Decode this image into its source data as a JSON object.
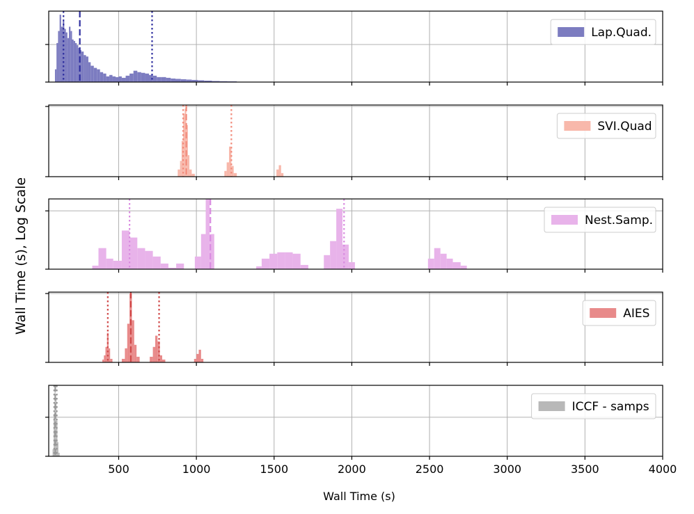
{
  "chart_data": {
    "type": "histogram",
    "xlabel": "Wall Time (s)",
    "ylabel": "Wall Time (s), Log Scale",
    "xlim": [
      50,
      4000
    ],
    "x_ticks": [
      500,
      1000,
      1500,
      2000,
      2500,
      3000,
      3500,
      4000
    ],
    "x_tick_labels": [
      "500",
      "1000",
      "1500",
      "2000",
      "2500",
      "3000",
      "3500",
      "4000"
    ],
    "y_scale": "log",
    "grid": true,
    "panels": [
      {
        "name": "Lap.Quad.",
        "color": "#7c7cc0",
        "line_color": "#3030a0",
        "ylim": [
          0,
          1.0
        ],
        "y_ticks": [
          0.53
        ],
        "bins": [
          {
            "x0": 90,
            "x1": 100,
            "h": 0.18
          },
          {
            "x0": 100,
            "x1": 110,
            "h": 0.55
          },
          {
            "x0": 110,
            "x1": 120,
            "h": 0.72
          },
          {
            "x0": 120,
            "x1": 130,
            "h": 0.95
          },
          {
            "x0": 130,
            "x1": 140,
            "h": 0.78
          },
          {
            "x0": 140,
            "x1": 150,
            "h": 0.86
          },
          {
            "x0": 150,
            "x1": 160,
            "h": 0.75
          },
          {
            "x0": 160,
            "x1": 170,
            "h": 0.7
          },
          {
            "x0": 170,
            "x1": 180,
            "h": 0.62
          },
          {
            "x0": 180,
            "x1": 190,
            "h": 0.78
          },
          {
            "x0": 190,
            "x1": 200,
            "h": 0.72
          },
          {
            "x0": 200,
            "x1": 210,
            "h": 0.6
          },
          {
            "x0": 210,
            "x1": 220,
            "h": 0.58
          },
          {
            "x0": 220,
            "x1": 230,
            "h": 0.55
          },
          {
            "x0": 230,
            "x1": 240,
            "h": 0.52
          },
          {
            "x0": 240,
            "x1": 250,
            "h": 0.48
          },
          {
            "x0": 250,
            "x1": 260,
            "h": 0.45
          },
          {
            "x0": 260,
            "x1": 275,
            "h": 0.43
          },
          {
            "x0": 275,
            "x1": 290,
            "h": 0.38
          },
          {
            "x0": 290,
            "x1": 305,
            "h": 0.36
          },
          {
            "x0": 305,
            "x1": 320,
            "h": 0.28
          },
          {
            "x0": 320,
            "x1": 340,
            "h": 0.23
          },
          {
            "x0": 340,
            "x1": 360,
            "h": 0.2
          },
          {
            "x0": 360,
            "x1": 380,
            "h": 0.18
          },
          {
            "x0": 380,
            "x1": 400,
            "h": 0.14
          },
          {
            "x0": 400,
            "x1": 420,
            "h": 0.12
          },
          {
            "x0": 420,
            "x1": 440,
            "h": 0.08
          },
          {
            "x0": 440,
            "x1": 460,
            "h": 0.1
          },
          {
            "x0": 460,
            "x1": 480,
            "h": 0.08
          },
          {
            "x0": 480,
            "x1": 500,
            "h": 0.07
          },
          {
            "x0": 500,
            "x1": 520,
            "h": 0.08
          },
          {
            "x0": 520,
            "x1": 545,
            "h": 0.06
          },
          {
            "x0": 545,
            "x1": 570,
            "h": 0.09
          },
          {
            "x0": 570,
            "x1": 595,
            "h": 0.12
          },
          {
            "x0": 595,
            "x1": 620,
            "h": 0.16
          },
          {
            "x0": 620,
            "x1": 645,
            "h": 0.14
          },
          {
            "x0": 645,
            "x1": 670,
            "h": 0.13
          },
          {
            "x0": 670,
            "x1": 695,
            "h": 0.12
          },
          {
            "x0": 695,
            "x1": 720,
            "h": 0.1
          },
          {
            "x0": 720,
            "x1": 745,
            "h": 0.09
          },
          {
            "x0": 745,
            "x1": 775,
            "h": 0.07
          },
          {
            "x0": 775,
            "x1": 805,
            "h": 0.07
          },
          {
            "x0": 805,
            "x1": 835,
            "h": 0.06
          },
          {
            "x0": 835,
            "x1": 865,
            "h": 0.05
          },
          {
            "x0": 865,
            "x1": 900,
            "h": 0.045
          },
          {
            "x0": 900,
            "x1": 935,
            "h": 0.04
          },
          {
            "x0": 935,
            "x1": 970,
            "h": 0.035
          },
          {
            "x0": 970,
            "x1": 1010,
            "h": 0.03
          },
          {
            "x0": 1010,
            "x1": 1050,
            "h": 0.025
          },
          {
            "x0": 1050,
            "x1": 1100,
            "h": 0.02
          },
          {
            "x0": 1100,
            "x1": 1150,
            "h": 0.015
          },
          {
            "x0": 1150,
            "x1": 1200,
            "h": 0.012
          },
          {
            "x0": 1200,
            "x1": 1260,
            "h": 0.01
          }
        ],
        "lines": [
          {
            "x": 145,
            "style": "dotted"
          },
          {
            "x": 250,
            "style": "dashed"
          },
          {
            "x": 715,
            "style": "dotted"
          }
        ]
      },
      {
        "name": "SVI.Quad",
        "color": "#f8b8ab",
        "line_color": "#f28c7c",
        "ylim": [
          0,
          1.0
        ],
        "y_ticks": [
          0.98
        ],
        "bins": [
          {
            "x0": 880,
            "x1": 895,
            "h": 0.1
          },
          {
            "x0": 895,
            "x1": 905,
            "h": 0.22
          },
          {
            "x0": 905,
            "x1": 915,
            "h": 0.5
          },
          {
            "x0": 915,
            "x1": 925,
            "h": 0.88
          },
          {
            "x0": 925,
            "x1": 935,
            "h": 0.95
          },
          {
            "x0": 935,
            "x1": 945,
            "h": 0.72
          },
          {
            "x0": 945,
            "x1": 955,
            "h": 0.3
          },
          {
            "x0": 955,
            "x1": 970,
            "h": 0.1
          },
          {
            "x0": 970,
            "x1": 990,
            "h": 0.04
          },
          {
            "x0": 1180,
            "x1": 1195,
            "h": 0.08
          },
          {
            "x0": 1195,
            "x1": 1210,
            "h": 0.2
          },
          {
            "x0": 1210,
            "x1": 1225,
            "h": 0.42
          },
          {
            "x0": 1225,
            "x1": 1240,
            "h": 0.15
          },
          {
            "x0": 1240,
            "x1": 1260,
            "h": 0.05
          },
          {
            "x0": 1515,
            "x1": 1530,
            "h": 0.1
          },
          {
            "x0": 1530,
            "x1": 1545,
            "h": 0.16
          },
          {
            "x0": 1545,
            "x1": 1560,
            "h": 0.05
          }
        ],
        "lines": [
          {
            "x": 915,
            "style": "dotted"
          },
          {
            "x": 935,
            "style": "dashed"
          },
          {
            "x": 1225,
            "style": "dotted"
          }
        ]
      },
      {
        "name": "Nest.Samp.",
        "color": "#e8b3ea",
        "line_color": "#d98be0",
        "ylim": [
          0,
          1.0
        ],
        "y_ticks": [
          0.83
        ],
        "bins": [
          {
            "x0": 330,
            "x1": 370,
            "h": 0.05
          },
          {
            "x0": 370,
            "x1": 420,
            "h": 0.3
          },
          {
            "x0": 420,
            "x1": 465,
            "h": 0.15
          },
          {
            "x0": 465,
            "x1": 520,
            "h": 0.12
          },
          {
            "x0": 520,
            "x1": 570,
            "h": 0.55
          },
          {
            "x0": 570,
            "x1": 620,
            "h": 0.45
          },
          {
            "x0": 620,
            "x1": 670,
            "h": 0.3
          },
          {
            "x0": 670,
            "x1": 720,
            "h": 0.26
          },
          {
            "x0": 720,
            "x1": 770,
            "h": 0.18
          },
          {
            "x0": 770,
            "x1": 820,
            "h": 0.08
          },
          {
            "x0": 820,
            "x1": 870,
            "h": 0.02
          },
          {
            "x0": 870,
            "x1": 920,
            "h": 0.08
          },
          {
            "x0": 990,
            "x1": 1030,
            "h": 0.18
          },
          {
            "x0": 1030,
            "x1": 1060,
            "h": 0.5
          },
          {
            "x0": 1060,
            "x1": 1085,
            "h": 1.02
          },
          {
            "x0": 1085,
            "x1": 1115,
            "h": 0.5
          },
          {
            "x0": 1385,
            "x1": 1420,
            "h": 0.04
          },
          {
            "x0": 1420,
            "x1": 1470,
            "h": 0.15
          },
          {
            "x0": 1470,
            "x1": 1520,
            "h": 0.22
          },
          {
            "x0": 1520,
            "x1": 1570,
            "h": 0.24
          },
          {
            "x0": 1570,
            "x1": 1620,
            "h": 0.24
          },
          {
            "x0": 1620,
            "x1": 1670,
            "h": 0.22
          },
          {
            "x0": 1670,
            "x1": 1720,
            "h": 0.06
          },
          {
            "x0": 1820,
            "x1": 1860,
            "h": 0.2
          },
          {
            "x0": 1860,
            "x1": 1900,
            "h": 0.4
          },
          {
            "x0": 1900,
            "x1": 1940,
            "h": 0.86
          },
          {
            "x0": 1940,
            "x1": 1980,
            "h": 0.35
          },
          {
            "x0": 1980,
            "x1": 2020,
            "h": 0.1
          },
          {
            "x0": 2490,
            "x1": 2530,
            "h": 0.15
          },
          {
            "x0": 2530,
            "x1": 2570,
            "h": 0.3
          },
          {
            "x0": 2570,
            "x1": 2610,
            "h": 0.22
          },
          {
            "x0": 2610,
            "x1": 2650,
            "h": 0.15
          },
          {
            "x0": 2650,
            "x1": 2700,
            "h": 0.1
          },
          {
            "x0": 2700,
            "x1": 2740,
            "h": 0.05
          }
        ],
        "lines": [
          {
            "x": 570,
            "style": "dotted"
          },
          {
            "x": 1090,
            "style": "dashed"
          },
          {
            "x": 1950,
            "style": "dotted"
          }
        ]
      },
      {
        "name": "AIES",
        "color": "#e88a8a",
        "line_color": "#d04848",
        "ylim": [
          0,
          1.0
        ],
        "y_ticks": [
          0.98
        ],
        "bins": [
          {
            "x0": 395,
            "x1": 405,
            "h": 0.04
          },
          {
            "x0": 405,
            "x1": 415,
            "h": 0.1
          },
          {
            "x0": 415,
            "x1": 425,
            "h": 0.22
          },
          {
            "x0": 425,
            "x1": 435,
            "h": 0.42
          },
          {
            "x0": 435,
            "x1": 445,
            "h": 0.2
          },
          {
            "x0": 445,
            "x1": 460,
            "h": 0.05
          },
          {
            "x0": 520,
            "x1": 540,
            "h": 0.05
          },
          {
            "x0": 540,
            "x1": 555,
            "h": 0.2
          },
          {
            "x0": 555,
            "x1": 570,
            "h": 0.55
          },
          {
            "x0": 570,
            "x1": 585,
            "h": 0.98
          },
          {
            "x0": 585,
            "x1": 600,
            "h": 0.6
          },
          {
            "x0": 600,
            "x1": 615,
            "h": 0.25
          },
          {
            "x0": 615,
            "x1": 635,
            "h": 0.08
          },
          {
            "x0": 700,
            "x1": 720,
            "h": 0.08
          },
          {
            "x0": 720,
            "x1": 735,
            "h": 0.22
          },
          {
            "x0": 735,
            "x1": 750,
            "h": 0.38
          },
          {
            "x0": 750,
            "x1": 765,
            "h": 0.3
          },
          {
            "x0": 765,
            "x1": 780,
            "h": 0.1
          },
          {
            "x0": 780,
            "x1": 800,
            "h": 0.04
          },
          {
            "x0": 985,
            "x1": 1000,
            "h": 0.05
          },
          {
            "x0": 1000,
            "x1": 1015,
            "h": 0.12
          },
          {
            "x0": 1015,
            "x1": 1030,
            "h": 0.18
          },
          {
            "x0": 1030,
            "x1": 1045,
            "h": 0.05
          }
        ],
        "lines": [
          {
            "x": 430,
            "style": "dotted"
          },
          {
            "x": 578,
            "style": "dashed"
          },
          {
            "x": 760,
            "style": "dotted"
          }
        ]
      },
      {
        "name": "ICCF - samps",
        "color": "#b8b8b8",
        "line_color": "#999999",
        "ylim": [
          0,
          1.0
        ],
        "y_ticks": [
          0.55
        ],
        "bins": [
          {
            "x0": 75,
            "x1": 82,
            "h": 0.1
          },
          {
            "x0": 82,
            "x1": 88,
            "h": 0.6
          },
          {
            "x0": 88,
            "x1": 94,
            "h": 0.92
          },
          {
            "x0": 94,
            "x1": 100,
            "h": 0.8
          },
          {
            "x0": 100,
            "x1": 106,
            "h": 0.5
          },
          {
            "x0": 106,
            "x1": 112,
            "h": 0.2
          },
          {
            "x0": 112,
            "x1": 120,
            "h": 0.05
          }
        ],
        "lines": [
          {
            "x": 85,
            "style": "dotted"
          },
          {
            "x": 92,
            "style": "dashed"
          },
          {
            "x": 102,
            "style": "dotted"
          }
        ]
      }
    ]
  }
}
